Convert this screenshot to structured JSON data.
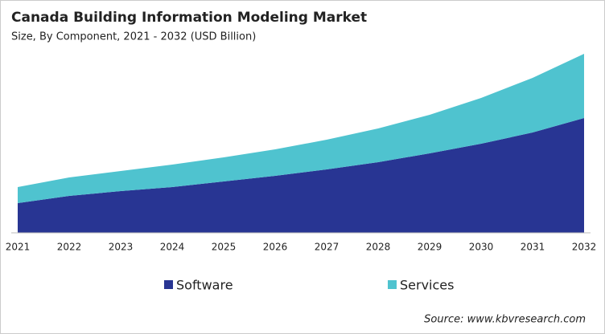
{
  "chart_data": {
    "type": "stacked_area",
    "title": "Canada Building Information Modeling Market",
    "subtitle": "Size, By Component, 2021 - 2032 (USD Billion)",
    "source": "Source: www.kbvresearch.com",
    "categories": [
      "2021",
      "2022",
      "2023",
      "2024",
      "2025",
      "2026",
      "2027",
      "2028",
      "2029",
      "2030",
      "2031",
      "2032"
    ],
    "series": [
      {
        "name": "Software",
        "color": "#283593",
        "values": [
          0.37,
          0.46,
          0.52,
          0.57,
          0.64,
          0.71,
          0.79,
          0.88,
          0.99,
          1.11,
          1.25,
          1.43
        ]
      },
      {
        "name": "Services",
        "color": "#4fc3cf",
        "values": [
          0.2,
          0.23,
          0.25,
          0.28,
          0.3,
          0.33,
          0.37,
          0.42,
          0.48,
          0.57,
          0.68,
          0.8
        ]
      }
    ],
    "ylim": [
      0,
      2.4
    ]
  }
}
